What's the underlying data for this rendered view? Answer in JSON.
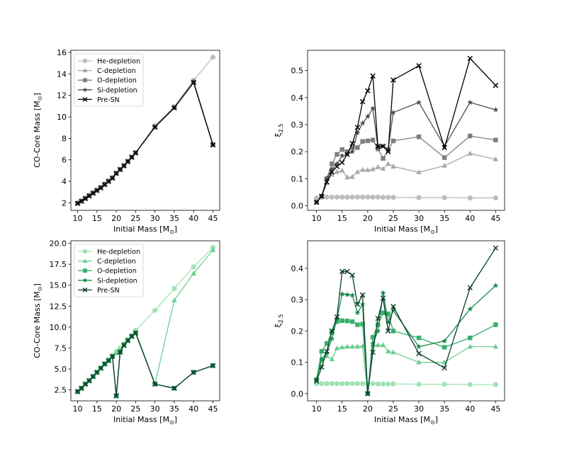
{
  "chart_data": [
    {
      "id": "tl",
      "type": "line",
      "xlabel": "Initial Mass [M⊙]",
      "ylabel": "CO-Core Mass [M⊙]",
      "xlim": [
        8.25,
        46.75
      ],
      "ylim": [
        1.3,
        16.2
      ],
      "xticks": [
        10,
        15,
        20,
        25,
        30,
        35,
        40,
        45
      ],
      "yticks": [
        2,
        4,
        6,
        8,
        10,
        12,
        14,
        16
      ],
      "ytick_labels": [
        "2",
        "4",
        "6",
        "8",
        "10",
        "12",
        "14",
        "16"
      ],
      "legend": "upper-left",
      "x": [
        10,
        11,
        12,
        13,
        14,
        15,
        16,
        17,
        18,
        19,
        20,
        21,
        22,
        23,
        24,
        25,
        30,
        35,
        40,
        45
      ],
      "series": [
        {
          "name": "He-depletion",
          "marker": "circle",
          "color": "#bdbdbd",
          "values": [
            2.0,
            2.2,
            2.45,
            2.7,
            2.95,
            3.2,
            3.45,
            3.75,
            4.05,
            4.35,
            4.75,
            5.1,
            5.45,
            5.85,
            6.25,
            6.65,
            9.2,
            10.95,
            13.4,
            15.55
          ]
        },
        {
          "name": "C-depletion",
          "marker": "triangle",
          "color": "#a8a8a8",
          "values": [
            1.95,
            2.15,
            2.4,
            2.65,
            2.9,
            3.15,
            3.4,
            3.7,
            4.0,
            4.3,
            4.75,
            5.1,
            5.45,
            5.85,
            6.25,
            6.65,
            9.1,
            10.9,
            13.3,
            7.4
          ]
        },
        {
          "name": "O-depletion",
          "marker": "square",
          "color": "#7d7d7d",
          "values": [
            1.95,
            2.15,
            2.4,
            2.65,
            2.9,
            3.15,
            3.4,
            3.7,
            4.0,
            4.3,
            4.75,
            5.1,
            5.45,
            5.85,
            6.25,
            6.65,
            9.05,
            10.85,
            13.25,
            7.4
          ]
        },
        {
          "name": "Si-depletion",
          "marker": "star",
          "color": "#4e4e4e",
          "values": [
            1.95,
            2.15,
            2.4,
            2.65,
            2.9,
            3.15,
            3.4,
            3.7,
            4.0,
            4.3,
            4.75,
            5.1,
            5.45,
            5.85,
            6.25,
            6.65,
            9.05,
            10.85,
            13.2,
            7.4
          ]
        },
        {
          "name": "Pre-SN",
          "marker": "x",
          "color": "#000000",
          "values": [
            1.95,
            2.15,
            2.4,
            2.65,
            2.9,
            3.15,
            3.4,
            3.7,
            4.0,
            4.3,
            4.75,
            5.1,
            5.45,
            5.85,
            6.25,
            6.65,
            9.05,
            10.85,
            13.2,
            7.4
          ]
        }
      ]
    },
    {
      "id": "tr",
      "type": "line",
      "xlabel": "Initial Mass [M⊙]",
      "ylabel": "ξ2.5",
      "xlim": [
        8.25,
        46.75
      ],
      "ylim": [
        -0.017,
        0.575
      ],
      "xticks": [
        10,
        15,
        20,
        25,
        30,
        35,
        40,
        45
      ],
      "yticks": [
        0.0,
        0.1,
        0.2,
        0.3,
        0.4,
        0.5
      ],
      "ytick_labels": [
        "0.0",
        "0.1",
        "0.2",
        "0.3",
        "0.4",
        "0.5"
      ],
      "legend": "none",
      "x": [
        10,
        11,
        12,
        13,
        14,
        15,
        16,
        17,
        18,
        19,
        20,
        21,
        22,
        23,
        24,
        25,
        30,
        35,
        40,
        45
      ],
      "series": [
        {
          "name": "He-depletion",
          "marker": "circle",
          "color": "#bdbdbd",
          "values": [
            0.029,
            0.031,
            0.032,
            0.032,
            0.032,
            0.032,
            0.032,
            0.032,
            0.032,
            0.032,
            0.032,
            0.032,
            0.032,
            0.031,
            0.031,
            0.031,
            0.03,
            0.03,
            0.029,
            0.029
          ]
        },
        {
          "name": "C-depletion",
          "marker": "triangle",
          "color": "#a8a8a8",
          "values": [
            0.013,
            0.035,
            0.085,
            0.115,
            0.125,
            0.13,
            0.105,
            0.107,
            0.125,
            0.133,
            0.132,
            0.135,
            0.143,
            0.137,
            0.155,
            0.145,
            0.124,
            0.148,
            0.193,
            0.172
          ]
        },
        {
          "name": "O-depletion",
          "marker": "square",
          "color": "#7d7d7d",
          "values": [
            0.013,
            0.035,
            0.1,
            0.155,
            0.19,
            0.208,
            0.2,
            0.215,
            0.215,
            0.238,
            0.24,
            0.243,
            0.21,
            0.175,
            0.205,
            0.24,
            0.255,
            0.178,
            0.258,
            0.243
          ]
        },
        {
          "name": "Si-depletion",
          "marker": "star",
          "color": "#4e4e4e",
          "values": [
            0.013,
            0.035,
            0.1,
            0.135,
            0.155,
            0.185,
            0.19,
            0.2,
            0.27,
            0.305,
            0.33,
            0.36,
            0.215,
            0.22,
            0.21,
            0.345,
            0.382,
            0.22,
            0.382,
            0.355
          ]
        },
        {
          "name": "Pre-SN",
          "marker": "x",
          "color": "#000000",
          "values": [
            0.013,
            0.035,
            0.088,
            0.125,
            0.145,
            0.16,
            0.19,
            0.23,
            0.29,
            0.385,
            0.425,
            0.48,
            0.22,
            0.22,
            0.2,
            0.465,
            0.518,
            0.215,
            0.545,
            0.445
          ]
        }
      ]
    },
    {
      "id": "bl",
      "type": "line",
      "xlabel": "Initial Mass [M⊙]",
      "ylabel": "CO-Core Mass [M⊙]",
      "xlim": [
        8.25,
        46.75
      ],
      "ylim": [
        1.2,
        20.3
      ],
      "xticks": [
        10,
        15,
        20,
        25,
        30,
        35,
        40,
        45
      ],
      "yticks": [
        2.5,
        5.0,
        7.5,
        10.0,
        12.5,
        15.0,
        17.5,
        20.0
      ],
      "ytick_labels": [
        "2.5",
        "5.0",
        "7.5",
        "10.0",
        "12.5",
        "15.0",
        "17.5",
        "20.0"
      ],
      "legend": "upper-left",
      "x": [
        10,
        11,
        12,
        13,
        14,
        15,
        16,
        17,
        18,
        19,
        20,
        21,
        22,
        23,
        24,
        25,
        30,
        35,
        40,
        45
      ],
      "series": [
        {
          "name": "He-depletion",
          "marker": "circle",
          "color": "#a1e3b3",
          "values": [
            2.3,
            2.7,
            3.2,
            3.6,
            4.1,
            4.6,
            5.1,
            5.6,
            6.1,
            6.6,
            7.1,
            7.5,
            8.0,
            8.5,
            9.0,
            9.6,
            12.0,
            14.6,
            17.2,
            19.5
          ]
        },
        {
          "name": "C-depletion",
          "marker": "triangle",
          "color": "#6bcf8f",
          "values": [
            2.3,
            2.7,
            3.2,
            3.6,
            4.1,
            4.6,
            5.1,
            5.6,
            6.1,
            6.5,
            6.9,
            7.2,
            7.9,
            8.4,
            8.9,
            9.4,
            3.2,
            13.2,
            16.4,
            19.2
          ]
        },
        {
          "name": "O-depletion",
          "marker": "square",
          "color": "#37b06c",
          "values": [
            2.3,
            2.7,
            3.2,
            3.6,
            4.1,
            4.6,
            5.1,
            5.6,
            6.0,
            6.5,
            1.8,
            7.1,
            7.9,
            8.4,
            8.9,
            9.3,
            3.2,
            2.7,
            4.6,
            5.4
          ]
        },
        {
          "name": "Si-depletion",
          "marker": "star",
          "color": "#1a8a4a",
          "values": [
            2.3,
            2.7,
            3.2,
            3.6,
            4.1,
            4.6,
            5.1,
            5.6,
            6.0,
            6.5,
            1.8,
            7.0,
            7.9,
            8.4,
            8.9,
            9.3,
            3.2,
            2.7,
            4.6,
            5.4
          ]
        },
        {
          "name": "Pre-SN",
          "marker": "x",
          "color": "#0b3d2a",
          "values": [
            2.3,
            2.7,
            3.2,
            3.6,
            4.1,
            4.6,
            5.1,
            5.6,
            6.0,
            6.5,
            1.8,
            7.0,
            7.8,
            8.4,
            8.9,
            9.3,
            3.2,
            2.7,
            4.6,
            5.4
          ]
        }
      ]
    },
    {
      "id": "br",
      "type": "line",
      "xlabel": "Initial Mass [M⊙]",
      "ylabel": "ξ2.5",
      "xlim": [
        8.25,
        46.75
      ],
      "ylim": [
        -0.023,
        0.488
      ],
      "xticks": [
        10,
        15,
        20,
        25,
        30,
        35,
        40,
        45
      ],
      "yticks": [
        0.0,
        0.1,
        0.2,
        0.3,
        0.4
      ],
      "ytick_labels": [
        "0.0",
        "0.1",
        "0.2",
        "0.3",
        "0.4"
      ],
      "legend": "none",
      "x": [
        10,
        11,
        12,
        13,
        14,
        15,
        16,
        17,
        18,
        19,
        20,
        21,
        22,
        23,
        24,
        25,
        30,
        35,
        40,
        45
      ],
      "series": [
        {
          "name": "He-depletion",
          "marker": "circle",
          "color": "#a1e3b3",
          "values": [
            0.032,
            0.032,
            0.032,
            0.032,
            0.032,
            0.032,
            0.032,
            0.032,
            0.032,
            0.032,
            0.032,
            0.032,
            0.031,
            0.031,
            0.031,
            0.031,
            0.03,
            0.03,
            0.029,
            0.029
          ]
        },
        {
          "name": "C-depletion",
          "marker": "triangle",
          "color": "#6bcf8f",
          "values": [
            0.045,
            0.105,
            0.12,
            0.11,
            0.145,
            0.148,
            0.15,
            0.15,
            0.15,
            0.152,
            0.0,
            0.155,
            0.155,
            0.155,
            0.135,
            0.132,
            0.1,
            0.1,
            0.15,
            0.15
          ]
        },
        {
          "name": "O-depletion",
          "marker": "square",
          "color": "#37b06c",
          "values": [
            0.045,
            0.135,
            0.16,
            0.195,
            0.23,
            0.233,
            0.232,
            0.23,
            0.22,
            0.222,
            0.0,
            0.18,
            0.22,
            0.258,
            0.255,
            0.2,
            0.178,
            0.148,
            0.178,
            0.22
          ]
        },
        {
          "name": "Si-depletion",
          "marker": "star",
          "color": "#1a8a4a",
          "values": [
            0.045,
            0.11,
            0.13,
            0.175,
            0.24,
            0.318,
            0.316,
            0.314,
            0.258,
            0.285,
            0.0,
            0.16,
            0.2,
            0.322,
            0.228,
            0.265,
            0.15,
            0.168,
            0.27,
            0.345
          ]
        },
        {
          "name": "Pre-SN",
          "marker": "x",
          "color": "#0b3d2a",
          "values": [
            0.04,
            0.085,
            0.135,
            0.2,
            0.245,
            0.39,
            0.39,
            0.378,
            0.285,
            0.315,
            0.0,
            0.132,
            0.24,
            0.305,
            0.2,
            0.278,
            0.128,
            0.082,
            0.338,
            0.465
          ]
        }
      ]
    }
  ]
}
